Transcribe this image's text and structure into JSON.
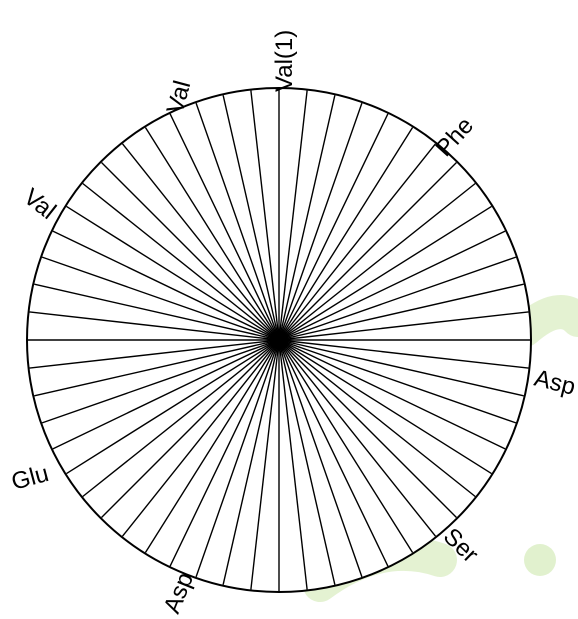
{
  "wheel": {
    "spoke_count": 56,
    "labels": [
      {
        "text": "Val(1)"
      },
      {
        "text": "Phe"
      },
      {
        "text": "Asp"
      },
      {
        "text": "Ser"
      },
      {
        "text": "Asp"
      },
      {
        "text": "Glu"
      },
      {
        "text": "Val"
      },
      {
        "text": "Val"
      }
    ]
  },
  "colors": {
    "line": "#000000",
    "watermark": "#c9e5a6"
  }
}
